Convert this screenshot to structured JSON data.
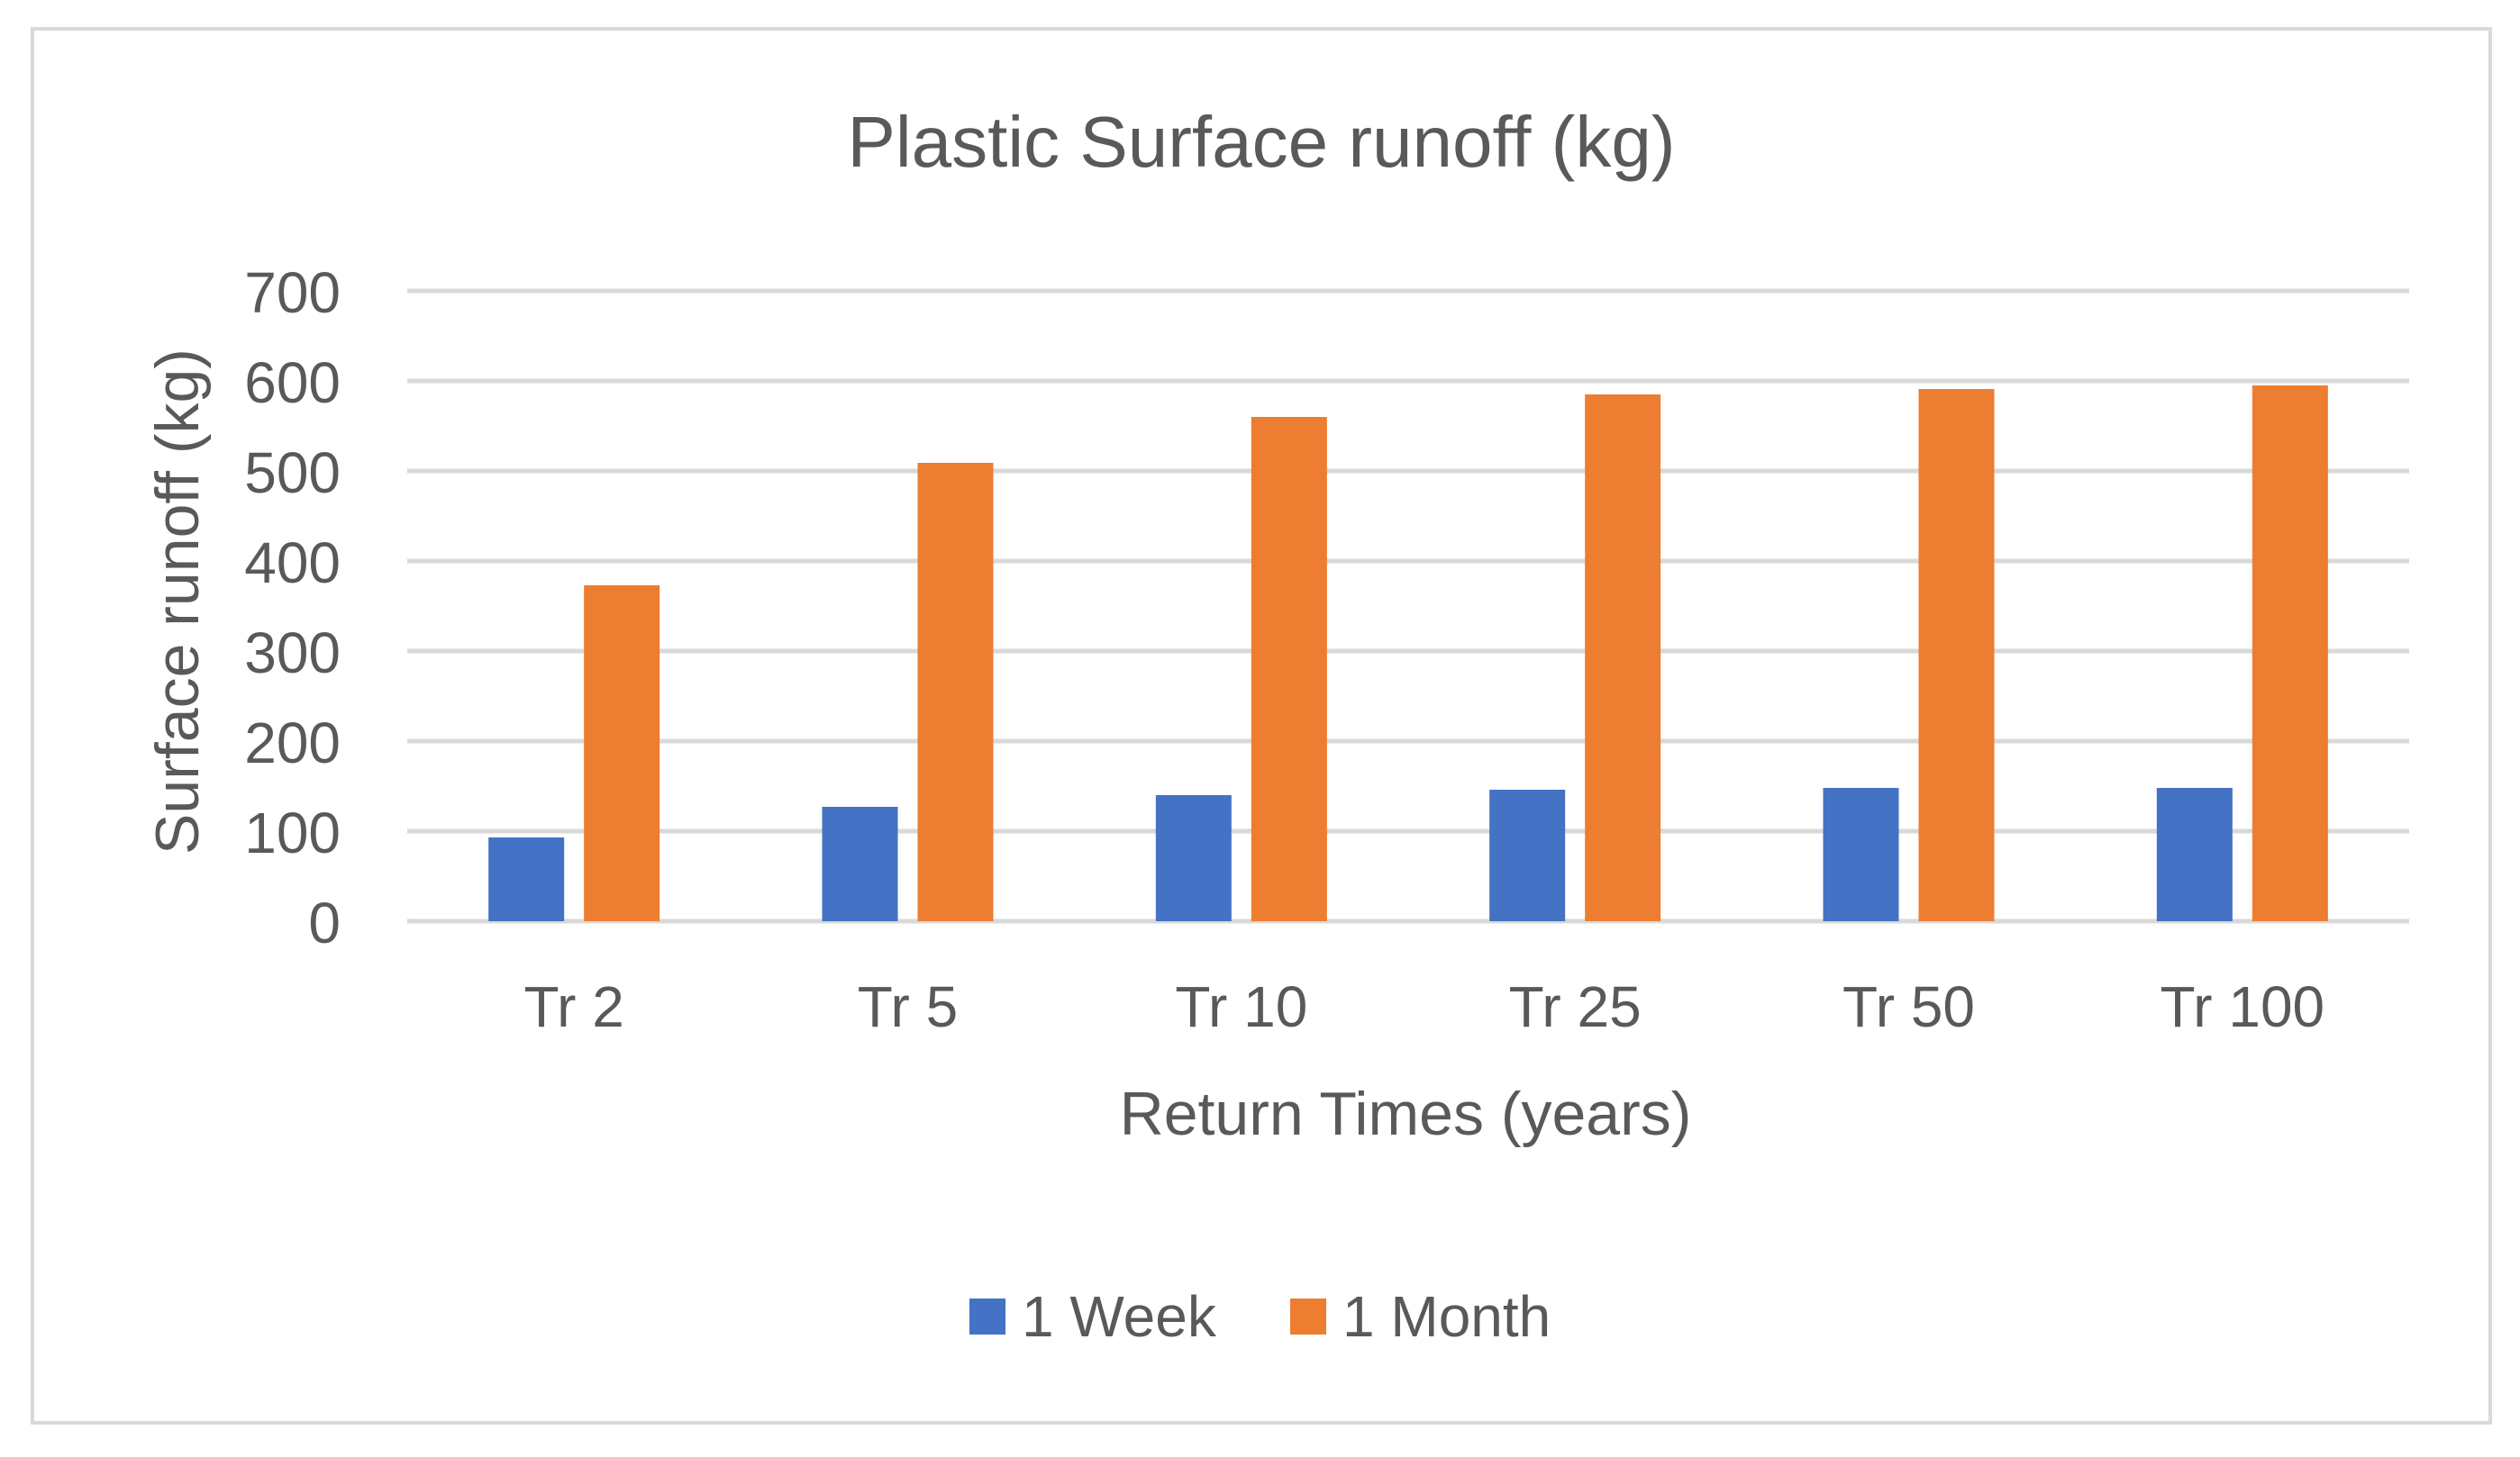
{
  "chart_data": {
    "type": "bar",
    "title": "Plastic Surface runoff (kg)",
    "xlabel": "Return Times (years)",
    "ylabel": "Surface runoff (kg)",
    "categories": [
      "Tr 2",
      "Tr 5",
      "Tr 10",
      "Tr 25",
      "Tr 50",
      "Tr 100"
    ],
    "series": [
      {
        "name": "1 Week",
        "color": "#4472c4",
        "values": [
          93,
          127,
          140,
          146,
          148,
          148
        ]
      },
      {
        "name": "1 Month",
        "color": "#ed7d31",
        "values": [
          373,
          509,
          560,
          585,
          591,
          595
        ]
      }
    ],
    "ylim": [
      0,
      700
    ],
    "yticks": [
      0,
      100,
      200,
      300,
      400,
      500,
      600,
      700
    ],
    "grid": true,
    "legend_position": "bottom"
  }
}
